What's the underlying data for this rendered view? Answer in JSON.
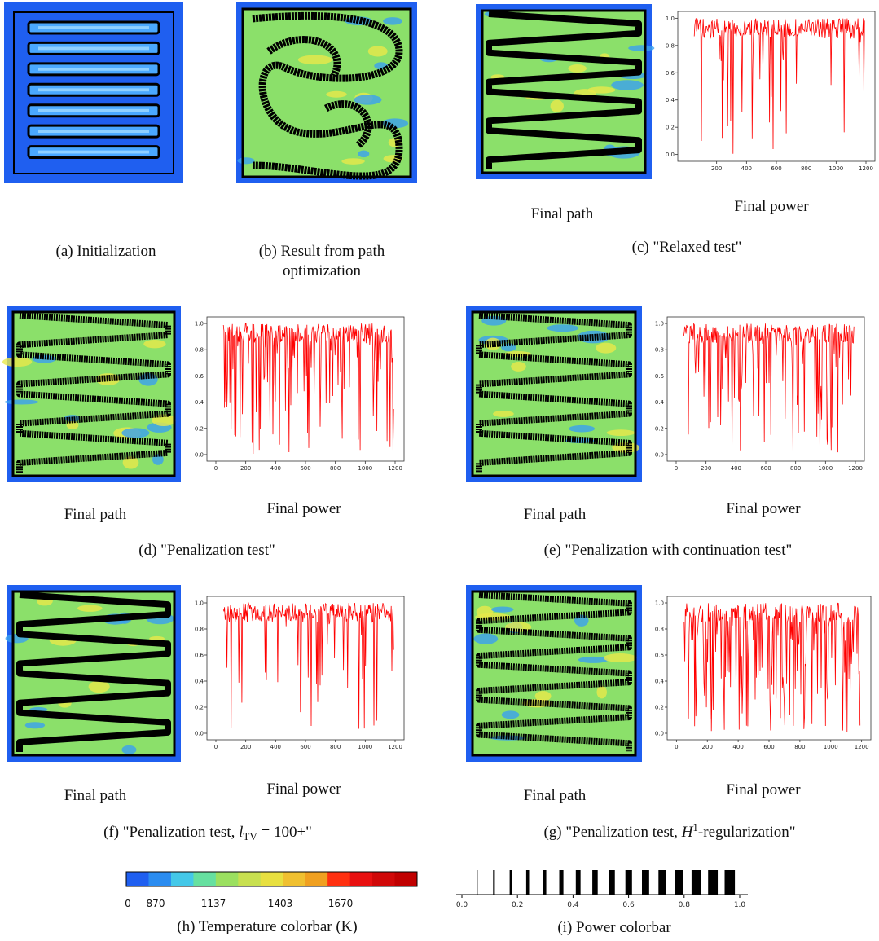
{
  "panels": [
    {
      "id": "a",
      "caption": "(a) Initialization"
    },
    {
      "id": "b",
      "caption": [
        "(b) Result from path",
        "optimization"
      ]
    },
    {
      "id": "c",
      "caption": "(c) \"Relaxed test\"",
      "path_label": "Final path",
      "power_label": "Final power",
      "xticks": [
        "200",
        "400",
        "600",
        "800",
        "1000",
        "1200"
      ],
      "yticks": [
        "0.0",
        "0.2",
        "0.4",
        "0.6",
        "0.8",
        "1.0"
      ]
    },
    {
      "id": "d",
      "caption": "(d) \"Penalization test\"",
      "path_label": "Final path",
      "power_label": "Final power",
      "xticks": [
        "0",
        "200",
        "400",
        "600",
        "800",
        "1000",
        "1200"
      ],
      "yticks": [
        "0.0",
        "0.2",
        "0.4",
        "0.6",
        "0.8",
        "1.0"
      ]
    },
    {
      "id": "e",
      "caption": "(e) \"Penalization with continuation test\"",
      "path_label": "Final path",
      "power_label": "Final power",
      "xticks": [
        "0",
        "200",
        "400",
        "600",
        "800",
        "1000",
        "1200"
      ],
      "yticks": [
        "0.0",
        "0.2",
        "0.4",
        "0.6",
        "0.8",
        "1.0"
      ]
    },
    {
      "id": "f",
      "caption": [
        "(f) \"Penalization test, ",
        "l",
        "TV",
        " = 100+\""
      ],
      "path_label": "Final path",
      "power_label": "Final power",
      "xticks": [
        "0",
        "200",
        "400",
        "600",
        "800",
        "1000",
        "1200"
      ],
      "yticks": [
        "0.0",
        "0.2",
        "0.4",
        "0.6",
        "0.8",
        "1.0"
      ]
    },
    {
      "id": "g",
      "caption": [
        "(g) \"Penalization test, ",
        "H",
        "1",
        "-regularization\""
      ],
      "path_label": "Final path",
      "power_label": "Final power",
      "xticks": [
        "0",
        "200",
        "400",
        "600",
        "800",
        "1000",
        "1200"
      ],
      "yticks": [
        "0.0",
        "0.2",
        "0.4",
        "0.6",
        "0.8",
        "1.0"
      ]
    }
  ],
  "temperature_colorbar": {
    "caption": "(h) Temperature colorbar (K)",
    "ticks": [
      "0",
      "870",
      "1137",
      "1403",
      "1670"
    ]
  },
  "power_colorbar": {
    "caption": "(i) Power colorbar",
    "ticks": [
      "0.0",
      "0.2",
      "0.4",
      "0.6",
      "0.8",
      "1.0"
    ]
  }
}
